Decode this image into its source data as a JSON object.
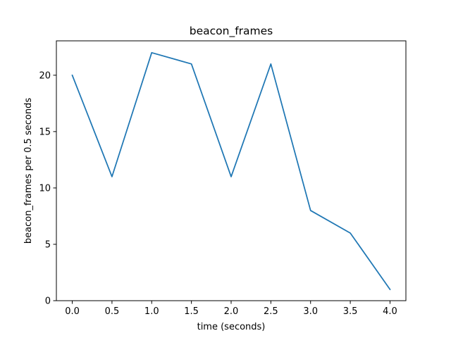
{
  "chart_data": {
    "type": "line",
    "title": "beacon_frames",
    "xlabel": "time (seconds)",
    "ylabel": "beacon_frames per 0.5 seconds",
    "xlim": [
      -0.2,
      4.2
    ],
    "ylim": [
      0,
      23.05
    ],
    "xticks": [
      0.0,
      0.5,
      1.0,
      1.5,
      2.0,
      2.5,
      3.0,
      3.5,
      4.0
    ],
    "xtick_labels": [
      "0.0",
      "0.5",
      "1.0",
      "1.5",
      "2.0",
      "2.5",
      "3.0",
      "3.5",
      "4.0"
    ],
    "yticks": [
      0,
      5,
      10,
      15,
      20
    ],
    "ytick_labels": [
      "0",
      "5",
      "10",
      "15",
      "20"
    ],
    "grid": false,
    "legend": "none",
    "series": [
      {
        "color": "#1f77b4",
        "x": [
          0.0,
          0.5,
          1.0,
          1.5,
          2.0,
          2.5,
          3.0,
          3.5,
          4.0
        ],
        "y": [
          20,
          11,
          22,
          21,
          11,
          21,
          8,
          6,
          1
        ]
      }
    ]
  }
}
